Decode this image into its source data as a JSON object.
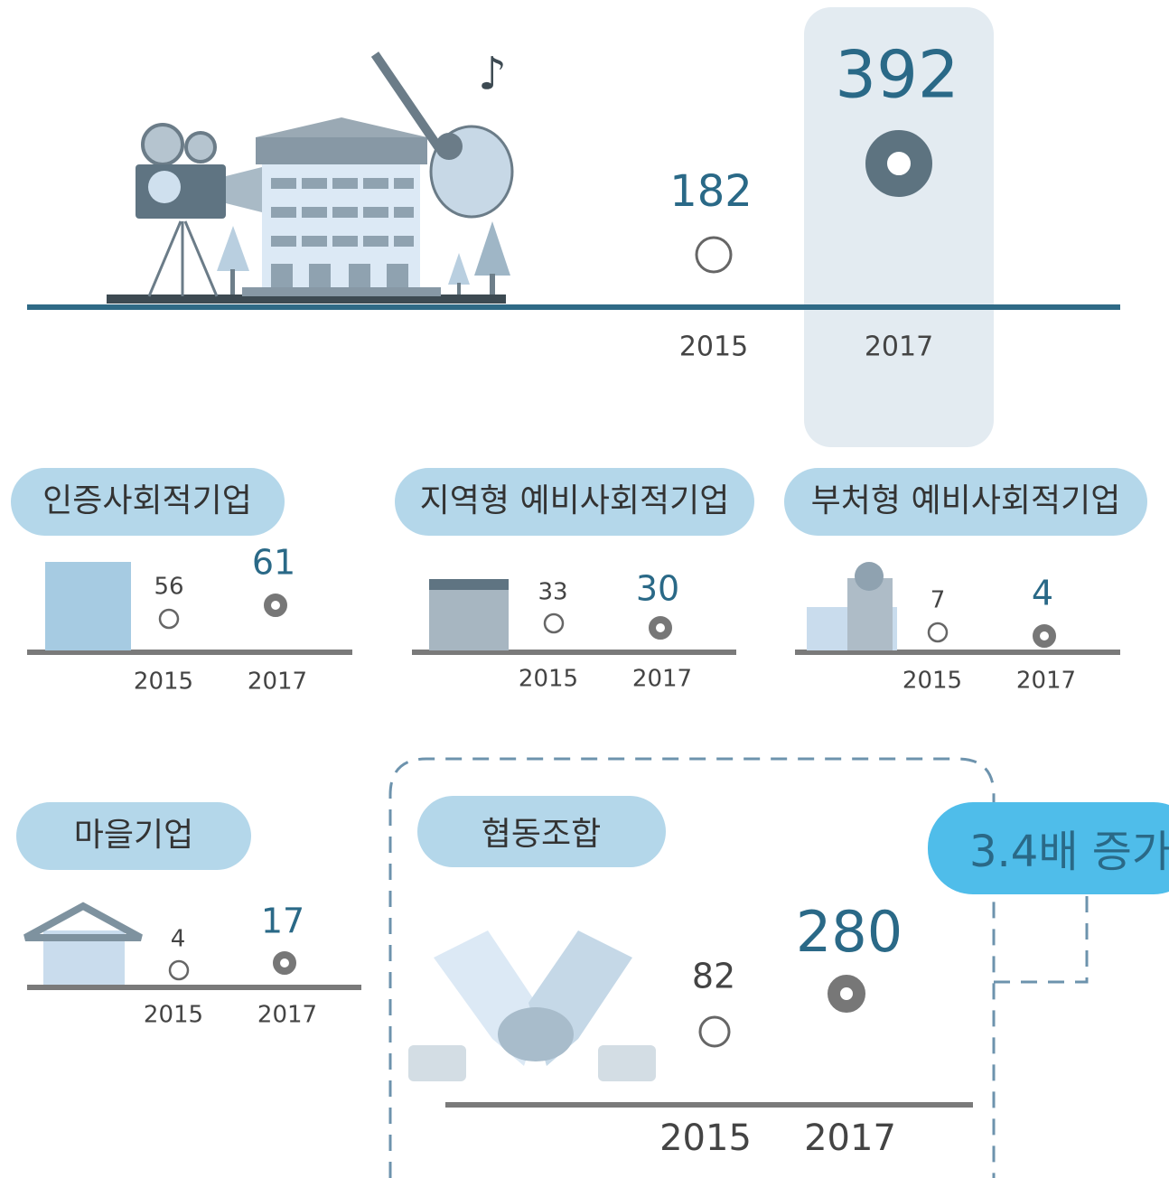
{
  "total": {
    "years": [
      "2015",
      "2017"
    ],
    "values": [
      182,
      392
    ]
  },
  "panels": [
    {
      "label": "인증사회적기업",
      "years": [
        "2015",
        "2017"
      ],
      "values": [
        56,
        61
      ]
    },
    {
      "label": "지역형 예비사회적기업",
      "years": [
        "2015",
        "2017"
      ],
      "values": [
        33,
        30
      ]
    },
    {
      "label": "부처형 예비사회적기업",
      "years": [
        "2015",
        "2017"
      ],
      "values": [
        7,
        4
      ]
    },
    {
      "label": "마을기업",
      "years": [
        "2015",
        "2017"
      ],
      "values": [
        4,
        17
      ]
    },
    {
      "label": "협동조합",
      "years": [
        "2015",
        "2017"
      ],
      "values": [
        82,
        280
      ]
    }
  ],
  "callout": "3.4배 증가"
}
